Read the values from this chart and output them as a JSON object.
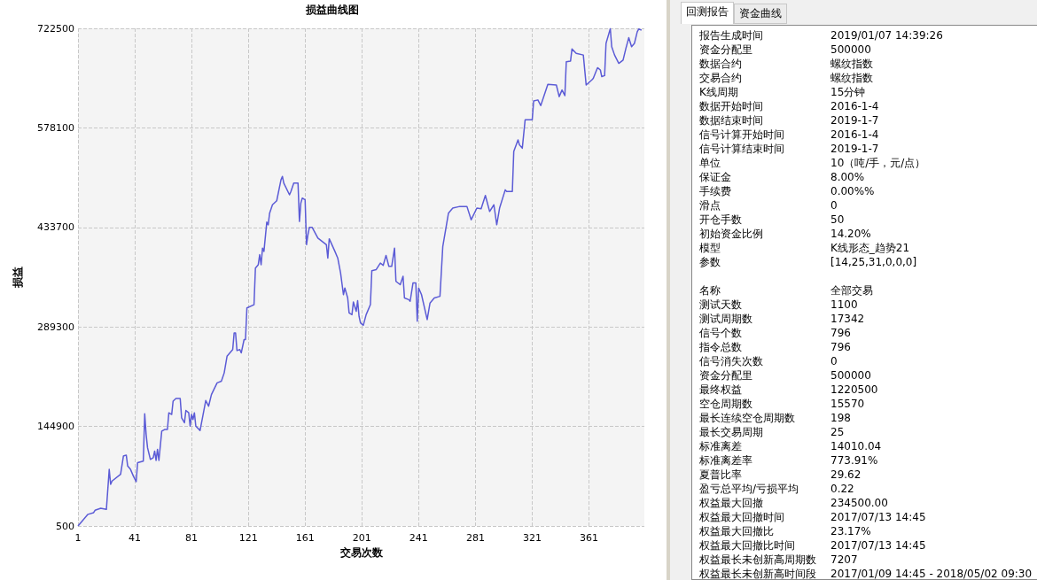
{
  "chart_data": [
    {
      "type": "line",
      "title": "损益曲线图",
      "xlabel": "交易次数",
      "ylabel": "损益",
      "color": "#5b5bd6",
      "grid": true,
      "xlim": [
        1,
        400
      ],
      "xticks": [
        1,
        41,
        81,
        121,
        161,
        201,
        241,
        281,
        321,
        361
      ],
      "ylim": [
        500,
        722500
      ],
      "yticks": [
        500,
        144900,
        289300,
        433700,
        578100,
        722500
      ],
      "x": [
        1,
        3,
        8,
        12,
        13,
        17,
        21,
        23,
        24,
        25,
        31,
        33,
        35,
        36,
        38,
        40,
        42,
        43,
        47,
        48,
        49,
        50,
        52,
        54,
        55,
        56,
        57,
        58,
        60,
        62,
        64,
        65,
        67,
        68,
        70,
        73,
        74,
        76,
        77,
        79,
        80,
        81,
        82,
        83,
        84,
        87,
        91,
        93,
        95,
        99,
        102,
        104,
        106,
        110,
        111,
        112,
        113,
        115,
        116,
        118,
        119,
        120,
        125,
        126,
        128,
        129,
        130,
        131,
        132,
        134,
        135,
        136,
        138,
        141,
        144,
        145,
        146,
        150,
        151,
        153,
        156,
        157,
        158,
        159,
        161,
        162,
        163,
        164,
        166,
        170,
        173,
        176,
        177,
        178,
        182,
        184,
        186,
        188,
        189,
        191,
        192,
        194,
        195,
        197,
        198,
        199,
        200,
        202,
        204,
        207,
        208,
        211,
        214,
        216,
        218,
        220,
        222,
        224,
        225,
        228,
        230,
        231,
        234,
        235,
        237,
        239,
        240,
        241,
        243,
        247,
        249,
        252,
        256,
        258,
        262,
        265,
        270,
        275,
        278,
        282,
        285,
        288,
        291,
        294,
        296,
        298,
        302,
        303,
        307,
        308,
        311,
        312,
        314,
        316,
        321,
        322,
        325,
        327,
        332,
        338,
        340,
        342,
        344,
        345,
        348,
        349,
        352,
        357,
        359,
        363,
        364,
        367,
        369,
        370,
        372,
        373,
        376,
        377,
        379,
        382,
        385,
        387,
        389,
        391,
        393,
        395,
        396,
        398
      ],
      "values": [
        500,
        5300,
        17400,
        19800,
        23200,
        26100,
        24600,
        82600,
        60900,
        65700,
        75400,
        101900,
        103400,
        87400,
        82600,
        72900,
        64700,
        92300,
        94700,
        163200,
        133300,
        114000,
        97100,
        99500,
        109200,
        95600,
        111600,
        95600,
        138100,
        140500,
        140500,
        164700,
        162300,
        181600,
        185500,
        185500,
        157400,
        150200,
        168100,
        164700,
        145400,
        162300,
        155000,
        164700,
        145400,
        139100,
        182500,
        174300,
        191200,
        208200,
        210600,
        222600,
        246800,
        256400,
        280600,
        280600,
        255000,
        256400,
        251600,
        270900,
        270900,
        316800,
        321600,
        374700,
        379600,
        394100,
        379600,
        403700,
        398900,
        441400,
        437500,
        454400,
        466500,
        472300,
        502700,
        507600,
        497900,
        481000,
        485800,
        497900,
        497900,
        442300,
        468900,
        476200,
        473700,
        408600,
        423000,
        433700,
        433700,
        418200,
        413400,
        408600,
        389200,
        417200,
        398900,
        389200,
        367500,
        336100,
        345800,
        331300,
        309600,
        307100,
        325500,
        312000,
        327400,
        304700,
        295100,
        291700,
        307100,
        321600,
        370900,
        372300,
        382000,
        378600,
        393100,
        377200,
        377200,
        403700,
        355400,
        350600,
        362700,
        331300,
        328900,
        326500,
        353100,
        353100,
        297600,
        345800,
        336100,
        299900,
        324000,
        331300,
        333700,
        406100,
        454400,
        461700,
        464100,
        464100,
        444800,
        461700,
        460700,
        480000,
        456800,
        466500,
        437500,
        461700,
        488200,
        485800,
        485800,
        543800,
        560700,
        553400,
        548600,
        589700,
        589700,
        617200,
        618600,
        610400,
        641300,
        640300,
        623400,
        633100,
        624900,
        674100,
        675100,
        692500,
        686200,
        683800,
        640300,
        647600,
        650000,
        665400,
        662100,
        652400,
        653900,
        700700,
        722000,
        695800,
        683800,
        671700,
        676500,
        693400,
        708900,
        695800,
        700700,
        717600,
        721500,
        720000
      ]
    },
    {
      "type": "other",
      "annotations": [
        "回测报告",
        "资金曲线"
      ],
      "categories": [
        "报告生成时间",
        "资金分配里",
        "数据合约",
        "交易合约",
        "K线周期",
        "数据开始时间",
        "数据结束时间",
        "信号计算开始时间",
        "信号计算结束时间",
        "单位",
        "保证金",
        "手续费",
        "滑点",
        "开仓手数",
        "初始资金比例",
        "模型",
        "参数",
        null,
        "名称",
        "测试天数",
        "测试周期数",
        "信号个数",
        "指令总数",
        "信号消失次数",
        "资金分配里",
        "最终权益",
        "空仓周期数",
        "最长连续空仓周期数",
        "最长交易周期",
        "标准离差",
        "标准离差率",
        "夏普比率",
        "盈亏总平均/亏损平均",
        "权益最大回撤",
        "权益最大回撤时间",
        "权益最大回撤比",
        "权益最大回撤比时间",
        "权益最长未创新高周期数",
        "权益最长未创新高时间段"
      ],
      "value_labels": [
        "2019/01/07 14:39:26",
        "500000",
        "螺纹指数",
        "螺纹指数",
        "15分钟",
        "2016-1-4",
        "2019-1-7",
        "2016-1-4",
        "2019-1-7",
        "10（吨/手，元/点）",
        "8.00%",
        "0.00%%",
        "0",
        "50",
        "14.20%",
        "K线形态_趋势21",
        "[14,25,31,0,0,0]",
        null,
        "全部交易",
        "1100",
        "17342",
        "796",
        "796",
        "0",
        "500000",
        "1220500",
        "15570",
        "198",
        "25",
        "14010.04",
        "773.91%",
        "29.62",
        "0.22",
        "234500.00",
        "2017/07/13 14:45",
        "23.17%",
        "2017/07/13 14:45",
        "7207",
        "2017/01/09 14:45 - 2018/05/02 09:30"
      ]
    }
  ]
}
